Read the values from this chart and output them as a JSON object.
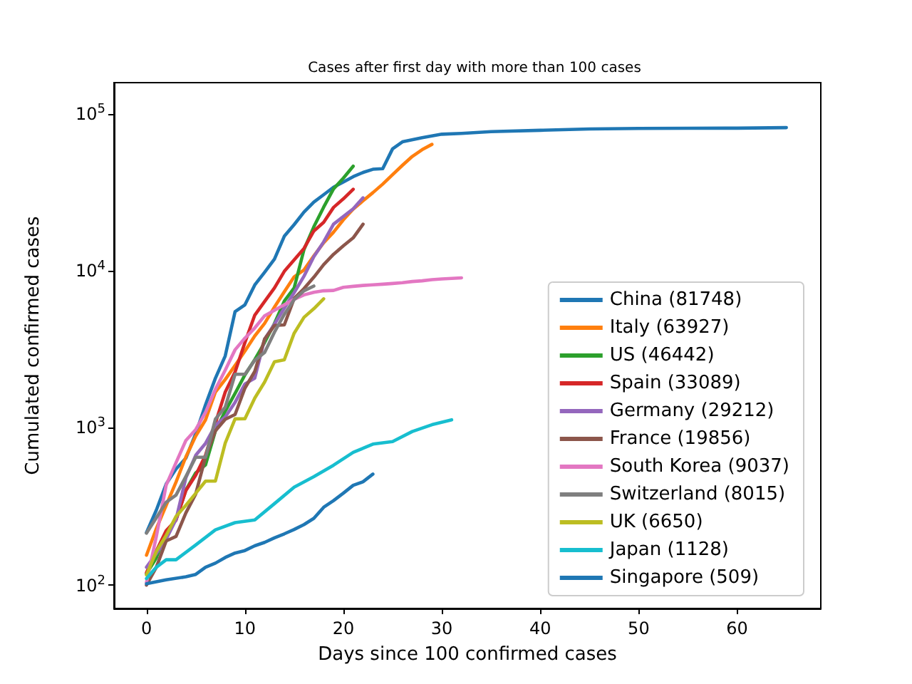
{
  "chart_data": {
    "type": "line",
    "title": "Cases after first day with more than 100 cases",
    "xlabel": "Days since 100 confirmed cases",
    "ylabel": "Cumulated confirmed cases",
    "log": "y",
    "grid": false,
    "legend": "bottom right",
    "marker": "none",
    "line_style": "solid",
    "xlim": [
      -3.3,
      68.5
    ],
    "xticks": [
      0,
      10,
      20,
      30,
      40,
      50,
      60
    ],
    "ylim": [
      71,
      158000
    ],
    "yticks": [
      {
        "value": 100,
        "label": "10$^{2}$"
      },
      {
        "value": 1000,
        "label": "10$^{3}$"
      },
      {
        "value": 10000,
        "label": "10$^{4}$"
      },
      {
        "value": 100000,
        "label": "10$^{5}$"
      }
    ],
    "series": [
      {
        "name": "China (81748)",
        "color": "#1f77b4",
        "x": [
          0,
          1,
          2,
          3,
          4,
          5,
          6,
          7,
          8,
          9,
          10,
          11,
          12,
          13,
          14,
          15,
          16,
          17,
          18,
          19,
          20,
          21,
          22,
          23,
          24,
          25,
          26,
          28,
          30,
          32,
          35,
          40,
          45,
          50,
          55,
          60,
          65
        ],
        "values": [
          216,
          300,
          440,
          548,
          643,
          920,
          1406,
          2075,
          2877,
          5509,
          6087,
          8141,
          9802,
          11891,
          16630,
          19716,
          23707,
          27440,
          30587,
          34110,
          36814,
          39829,
          42354,
          44386,
          44759,
          59895,
          66358,
          70513,
          74211,
          75077,
          77001,
          78600,
          80136,
          80770,
          80932,
          81102,
          81748
        ]
      },
      {
        "name": "Italy (63927)",
        "color": "#ff7f0e",
        "x": [
          0,
          1,
          2,
          3,
          4,
          5,
          6,
          7,
          8,
          9,
          10,
          11,
          12,
          13,
          14,
          15,
          16,
          17,
          18,
          19,
          20,
          21,
          22,
          23,
          24,
          25,
          26,
          27,
          28,
          29
        ],
        "values": [
          155,
          229,
          322,
          453,
          655,
          888,
          1128,
          1694,
          2036,
          2502,
          3089,
          3858,
          4636,
          5883,
          7375,
          9172,
          10149,
          12462,
          15113,
          17660,
          21157,
          24747,
          27980,
          31506,
          35713,
          41035,
          47021,
          53578,
          59138,
          63927
        ]
      },
      {
        "name": "US (46442)",
        "color": "#2ca02c",
        "x": [
          0,
          1,
          2,
          3,
          4,
          5,
          6,
          7,
          8,
          9,
          10,
          11,
          12,
          13,
          14,
          15,
          16,
          17,
          18,
          19,
          20,
          21
        ],
        "values": [
          118,
          149,
          217,
          262,
          402,
          518,
          583,
          959,
          1281,
          1663,
          2179,
          2726,
          3499,
          4632,
          6421,
          7786,
          13680,
          19101,
          25493,
          33276,
          39000,
          46442
        ]
      },
      {
        "name": "Spain (33089)",
        "color": "#d62728",
        "x": [
          0,
          1,
          2,
          3,
          4,
          5,
          6,
          7,
          8,
          9,
          10,
          11,
          12,
          13,
          14,
          15,
          16,
          17,
          18,
          19,
          20,
          21
        ],
        "values": [
          120,
          165,
          222,
          259,
          400,
          500,
          673,
          1073,
          1695,
          2277,
          3500,
          5232,
          6391,
          7798,
          9942,
          11748,
          13910,
          17963,
          20410,
          25374,
          28768,
          33089
        ]
      },
      {
        "name": "Germany (29212)",
        "color": "#9467bd",
        "x": [
          0,
          1,
          2,
          3,
          4,
          5,
          6,
          7,
          8,
          9,
          10,
          11,
          12,
          13,
          14,
          15,
          16,
          17,
          18,
          19,
          20,
          21,
          22
        ],
        "values": [
          130,
          159,
          196,
          262,
          482,
          670,
          799,
          1040,
          1176,
          1457,
          1908,
          2078,
          3675,
          4585,
          5795,
          7272,
          9257,
          12327,
          15320,
          19848,
          22213,
          24873,
          29212
        ]
      },
      {
        "name": "France (19856)",
        "color": "#8c564b",
        "x": [
          0,
          1,
          2,
          3,
          4,
          5,
          6,
          7,
          8,
          9,
          10,
          11,
          12,
          13,
          14,
          15,
          16,
          17,
          18,
          19,
          20,
          21,
          22
        ],
        "values": [
          100,
          130,
          191,
          204,
          288,
          380,
          656,
          959,
          1136,
          1219,
          1794,
          2293,
          3681,
          4496,
          4532,
          6683,
          7715,
          9124,
          10970,
          12758,
          14463,
          16243,
          19856
        ]
      },
      {
        "name": "South Korea (9037)",
        "color": "#e377c2",
        "x": [
          0,
          1,
          2,
          3,
          4,
          5,
          6,
          7,
          8,
          9,
          10,
          11,
          12,
          13,
          14,
          15,
          16,
          17,
          18,
          19,
          20,
          21,
          22,
          23,
          24,
          25,
          26,
          27,
          28,
          29,
          30,
          31,
          32
        ],
        "values": [
          104,
          204,
          433,
          602,
          833,
          977,
          1261,
          1766,
          2337,
          3150,
          3736,
          4335,
          5186,
          5621,
          6088,
          6593,
          7041,
          7314,
          7478,
          7513,
          7869,
          7979,
          8086,
          8162,
          8236,
          8320,
          8413,
          8565,
          8652,
          8799,
          8897,
          8961,
          9037
        ]
      },
      {
        "name": "Switzerland (8015)",
        "color": "#7f7f7f",
        "x": [
          0,
          1,
          2,
          3,
          4,
          5,
          6,
          7,
          8,
          9,
          10,
          11,
          12,
          13,
          14,
          15,
          16,
          17
        ],
        "values": [
          214,
          268,
          337,
          374,
          491,
          652,
          652,
          1139,
          1359,
          2200,
          2200,
          2700,
          3028,
          4075,
          5294,
          6575,
          7474,
          8015
        ]
      },
      {
        "name": "UK (6650)",
        "color": "#bcbd22",
        "x": [
          0,
          1,
          2,
          3,
          4,
          5,
          6,
          7,
          8,
          9,
          10,
          11,
          12,
          13,
          14,
          15,
          16,
          17,
          18
        ],
        "values": [
          116,
          164,
          207,
          274,
          322,
          384,
          459,
          459,
          802,
          1144,
          1145,
          1551,
          1960,
          2642,
          2716,
          4014,
          5067,
          5745,
          6650
        ]
      },
      {
        "name": "Japan (1128)",
        "color": "#17becf",
        "x": [
          0,
          1,
          2,
          3,
          5,
          7,
          9,
          11,
          13,
          15,
          17,
          19,
          21,
          23,
          25,
          27,
          29,
          31
        ],
        "values": [
          110,
          130,
          145,
          145,
          180,
          225,
          250,
          260,
          330,
          420,
          490,
          580,
          700,
          790,
          820,
          950,
          1050,
          1128
        ]
      },
      {
        "name": "Singapore (509)",
        "color": "#1f77b4",
        "x": [
          0,
          2,
          4,
          5,
          6,
          7,
          8,
          9,
          10,
          11,
          12,
          13,
          14,
          15,
          16,
          17,
          18,
          19,
          20,
          21,
          22,
          23
        ],
        "values": [
          102,
          108,
          113,
          117,
          130,
          138,
          150,
          160,
          166,
          178,
          187,
          200,
          212,
          226,
          243,
          266,
          313,
          345,
          385,
          432,
          455,
          509
        ]
      }
    ]
  }
}
